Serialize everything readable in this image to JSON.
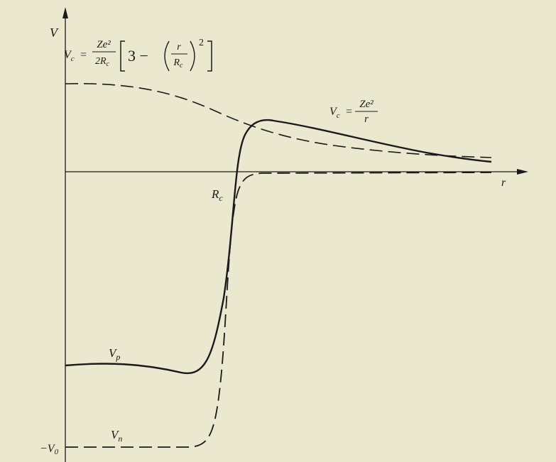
{
  "axes": {
    "y_label": "V",
    "x_label": "r",
    "x_mark": {
      "main": "R",
      "sub": "c"
    },
    "y_mark": {
      "main": "−V",
      "sub": "0"
    }
  },
  "curves": {
    "inner": {
      "lhs": {
        "main": "V",
        "sub": "c"
      },
      "equals": "=",
      "numerator": "Ze²",
      "denominator": {
        "main": "2R",
        "sub": "c"
      },
      "bracket_term": "3 −",
      "inner_num": "r",
      "inner_den": {
        "main": "R",
        "sub": "c"
      },
      "power": "2"
    },
    "coulomb": {
      "lhs": {
        "main": "V",
        "sub": "c"
      },
      "equals": "=",
      "numerator": "Ze²",
      "denominator": "r"
    },
    "proton": {
      "main": "V",
      "sub": "p"
    },
    "neutron": {
      "main": "V",
      "sub": "n"
    }
  }
}
